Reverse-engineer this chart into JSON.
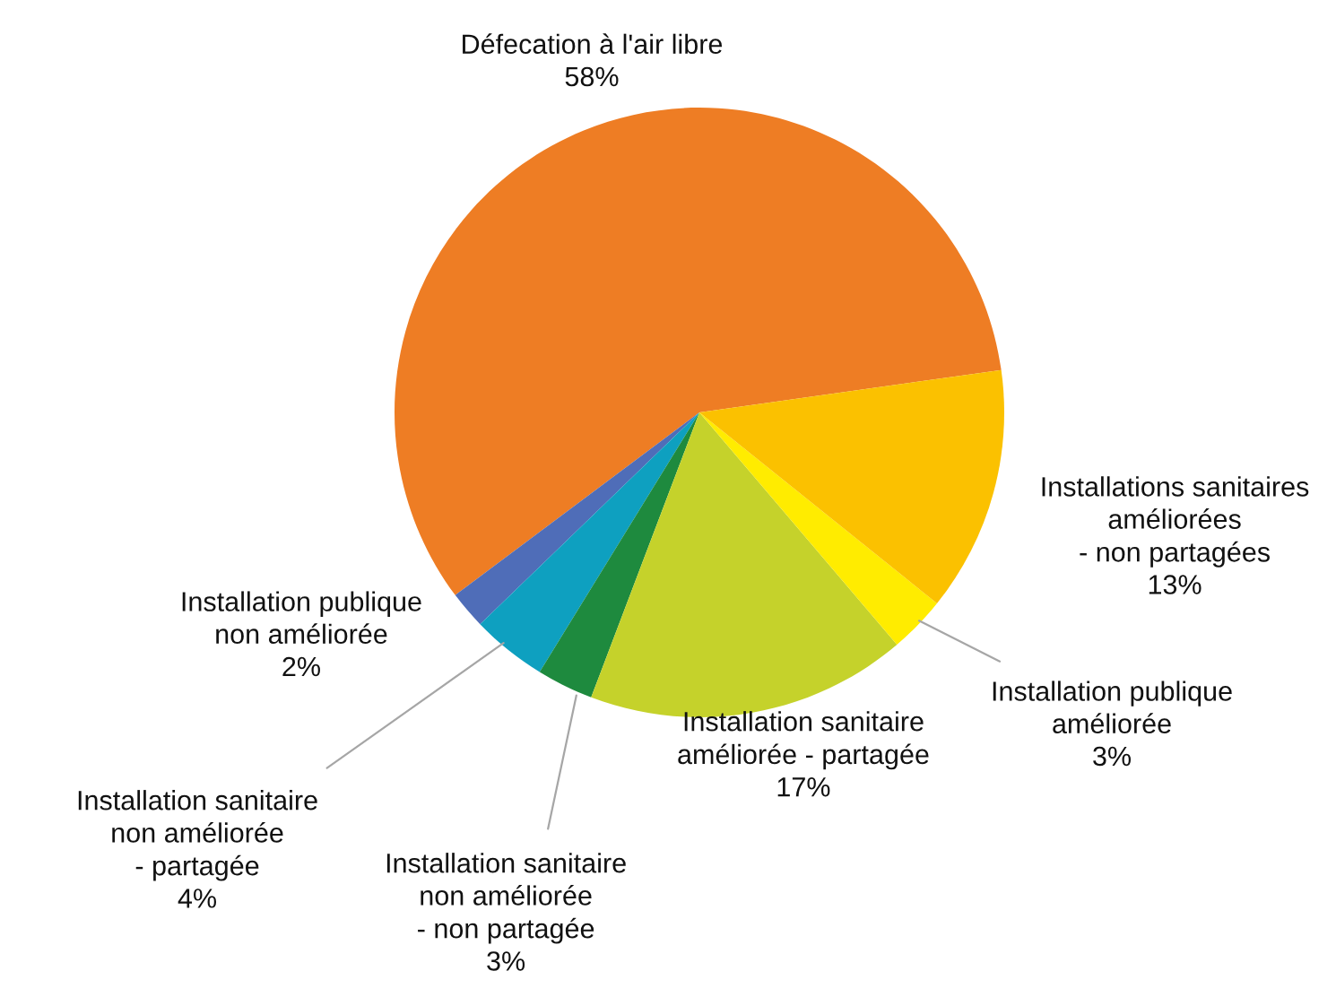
{
  "chart_data": {
    "type": "pie",
    "categories": [
      "Défecation à l'air libre",
      "Installation publique\nnon améliorée",
      "Installation sanitaire\nnon améliorée\n- partagée",
      "Installation sanitaire\nnon améliorée\n- non partagée",
      "Installation sanitaire\naméliorée - partagée",
      "Installation publique\naméliorée",
      "Installations sanitaires\naméliorées\n- non partagées"
    ],
    "values": [
      58,
      2,
      4,
      3,
      17,
      3,
      13
    ],
    "value_labels": [
      "58%",
      "2%",
      "4%",
      "3%",
      "17%",
      "3%",
      "13%"
    ],
    "colors": [
      "#ee7d24",
      "#4f6db8",
      "#0ea0c0",
      "#1e8a3e",
      "#c5d22b",
      "#ffec00",
      "#fbc100"
    ],
    "legend": false
  }
}
